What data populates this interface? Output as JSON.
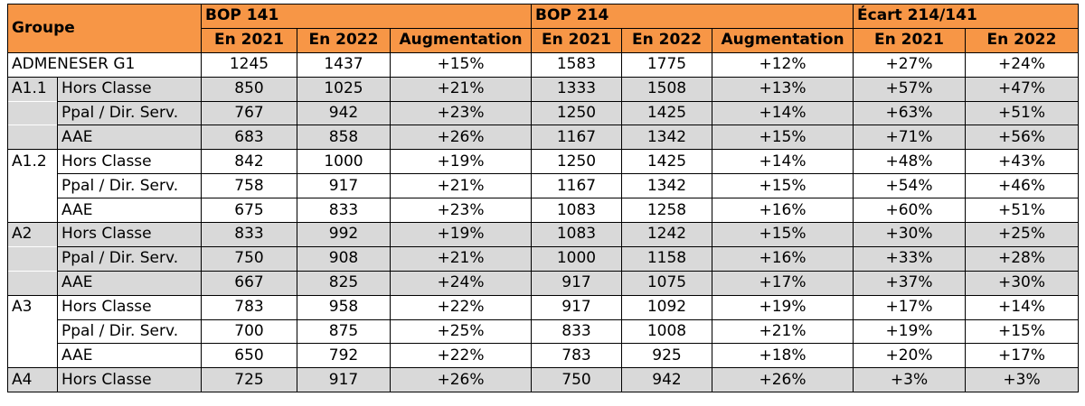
{
  "header": {
    "groupe_label": "Groupe",
    "sections": [
      "BOP 141",
      "BOP 214",
      "Écart 214/141"
    ],
    "sub_headers": [
      "En 2021",
      "En 2022",
      "Augmentation",
      "En 2021",
      "En 2022",
      "Augmentation",
      "En 2021",
      "En 2022"
    ]
  },
  "rows": [
    {
      "group": "ADMENESER G1",
      "sub": "",
      "values": [
        "1245",
        "1437",
        "+15%",
        "1583",
        "1775",
        "+12%",
        "+27%",
        "+24%"
      ],
      "shade": false,
      "merged": true
    },
    {
      "group": "A1.1",
      "sub": "Hors Classe",
      "values": [
        "850",
        "1025",
        "+21%",
        "1333",
        "1508",
        "+13%",
        "+57%",
        "+47%"
      ],
      "shade": true
    },
    {
      "group": "",
      "sub": "Ppal / Dir. Serv.",
      "values": [
        "767",
        "942",
        "+23%",
        "1250",
        "1425",
        "+14%",
        "+63%",
        "+51%"
      ],
      "shade": true
    },
    {
      "group": "",
      "sub": "AAE",
      "values": [
        "683",
        "858",
        "+26%",
        "1167",
        "1342",
        "+15%",
        "+71%",
        "+56%"
      ],
      "shade": true
    },
    {
      "group": "A1.2",
      "sub": "Hors Classe",
      "values": [
        "842",
        "1000",
        "+19%",
        "1250",
        "1425",
        "+14%",
        "+48%",
        "+43%"
      ],
      "shade": false
    },
    {
      "group": "",
      "sub": "Ppal / Dir. Serv.",
      "values": [
        "758",
        "917",
        "+21%",
        "1167",
        "1342",
        "+15%",
        "+54%",
        "+46%"
      ],
      "shade": false
    },
    {
      "group": "",
      "sub": "AAE",
      "values": [
        "675",
        "833",
        "+23%",
        "1083",
        "1258",
        "+16%",
        "+60%",
        "+51%"
      ],
      "shade": false
    },
    {
      "group": "A2",
      "sub": "Hors Classe",
      "values": [
        "833",
        "992",
        "+19%",
        "1083",
        "1242",
        "+15%",
        "+30%",
        "+25%"
      ],
      "shade": true
    },
    {
      "group": "",
      "sub": "Ppal / Dir. Serv.",
      "values": [
        "750",
        "908",
        "+21%",
        "1000",
        "1158",
        "+16%",
        "+33%",
        "+28%"
      ],
      "shade": true
    },
    {
      "group": "",
      "sub": "AAE",
      "values": [
        "667",
        "825",
        "+24%",
        "917",
        "1075",
        "+17%",
        "+37%",
        "+30%"
      ],
      "shade": true
    },
    {
      "group": "A3",
      "sub": "Hors Classe",
      "values": [
        "783",
        "958",
        "+22%",
        "917",
        "1092",
        "+19%",
        "+17%",
        "+14%"
      ],
      "shade": false
    },
    {
      "group": "",
      "sub": "Ppal / Dir. Serv.",
      "values": [
        "700",
        "875",
        "+25%",
        "833",
        "1008",
        "+21%",
        "+19%",
        "+15%"
      ],
      "shade": false
    },
    {
      "group": "",
      "sub": "AAE",
      "values": [
        "650",
        "792",
        "+22%",
        "783",
        "925",
        "+18%",
        "+20%",
        "+17%"
      ],
      "shade": false
    },
    {
      "group": "A4",
      "sub": "Hors Classe",
      "values": [
        "725",
        "917",
        "+26%",
        "750",
        "942",
        "+26%",
        "+3%",
        "+3%"
      ],
      "shade": true
    }
  ]
}
